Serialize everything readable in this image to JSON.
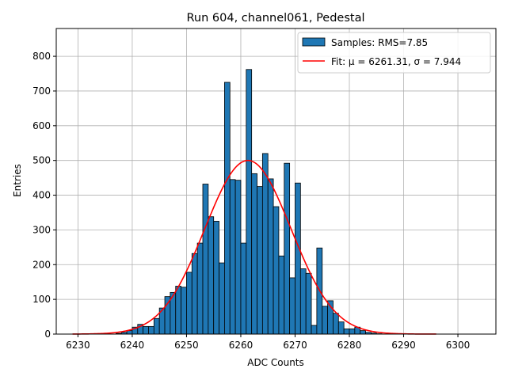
{
  "chart_data": {
    "type": "bar",
    "title": "Run 604, channel061, Pedestal",
    "xlabel": "ADC Counts",
    "ylabel": "Entries",
    "xlim": [
      6226,
      6307
    ],
    "ylim": [
      0,
      880
    ],
    "xticks": [
      6230,
      6240,
      6250,
      6260,
      6270,
      6280,
      6290,
      6300
    ],
    "yticks": [
      0,
      100,
      200,
      300,
      400,
      500,
      600,
      700,
      800
    ],
    "grid": true,
    "legend_position": "top-right",
    "bin_width": 1,
    "bar_color": "#1f77b4",
    "fit_color": "#ff0000",
    "histogram": {
      "legend_label": "Samples: RMS=7.85",
      "bins": [
        6237,
        6238,
        6239,
        6240,
        6241,
        6242,
        6243,
        6244,
        6245,
        6246,
        6247,
        6248,
        6249,
        6250,
        6251,
        6252,
        6253,
        6254,
        6255,
        6256,
        6257,
        6258,
        6259,
        6260,
        6261,
        6262,
        6263,
        6264,
        6265,
        6266,
        6267,
        6268,
        6269,
        6270,
        6271,
        6272,
        6273,
        6274,
        6275,
        6276,
        6277,
        6278,
        6279,
        6280,
        6281,
        6282,
        6283,
        6284,
        6285
      ],
      "counts": [
        2,
        5,
        10,
        20,
        28,
        22,
        22,
        45,
        75,
        108,
        120,
        138,
        135,
        178,
        232,
        262,
        432,
        338,
        325,
        205,
        725,
        445,
        443,
        262,
        762,
        462,
        425,
        520,
        447,
        367,
        225,
        492,
        162,
        435,
        188,
        175,
        25,
        248,
        80,
        96,
        60,
        35,
        15,
        15,
        20,
        10,
        5,
        3,
        1
      ]
    },
    "fit": {
      "legend_label": "Fit: μ = 6261.31, σ = 7.944",
      "mu": 6261.31,
      "sigma": 7.944,
      "amplitude": 500,
      "x_range": [
        6229,
        6296
      ]
    }
  }
}
